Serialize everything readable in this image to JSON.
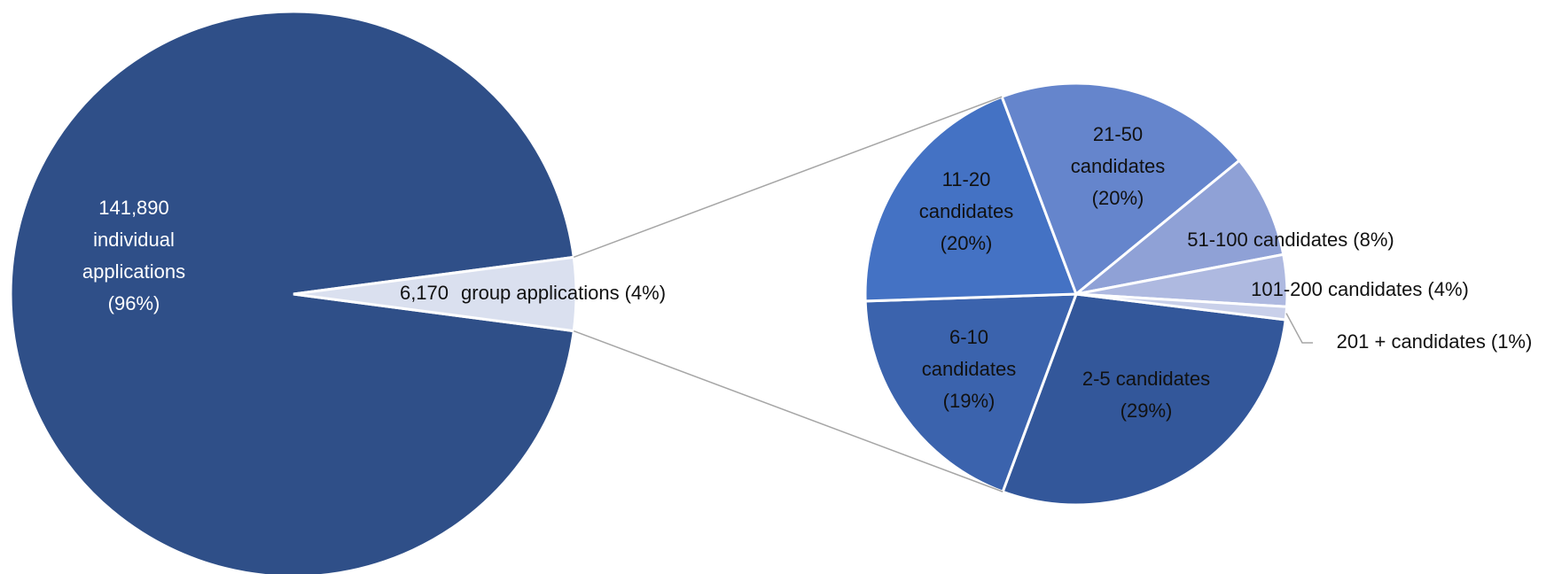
{
  "chart_data": [
    {
      "type": "pie",
      "categories": [
        "individual applications",
        "group applications"
      ],
      "values": [
        141890,
        6170
      ],
      "value_labels": [
        "141,890",
        "6,170"
      ],
      "percent_labels": [
        "(96%)",
        "(4%)"
      ],
      "colors": [
        "#2f4f88",
        "#dae0ef"
      ]
    },
    {
      "type": "pie",
      "categories": [
        "2-5 candidates",
        "6-10 candidates",
        "11-20 candidates",
        "21-50 candidates",
        "51-100 candidates",
        "101-200 candidates",
        "201 + candidates"
      ],
      "values": [
        29,
        19,
        20,
        20,
        8,
        4,
        1
      ],
      "value_labels": [
        "(29%)",
        "(19%)",
        "(20%)",
        "(20%)",
        "(8%)",
        "(4%)",
        "(1%)"
      ],
      "colors": [
        "#33579a",
        "#3b63ad",
        "#4472c4",
        "#6585cc",
        "#8fa1d6",
        "#aeb9e0",
        "#c9d0ea"
      ]
    }
  ]
}
